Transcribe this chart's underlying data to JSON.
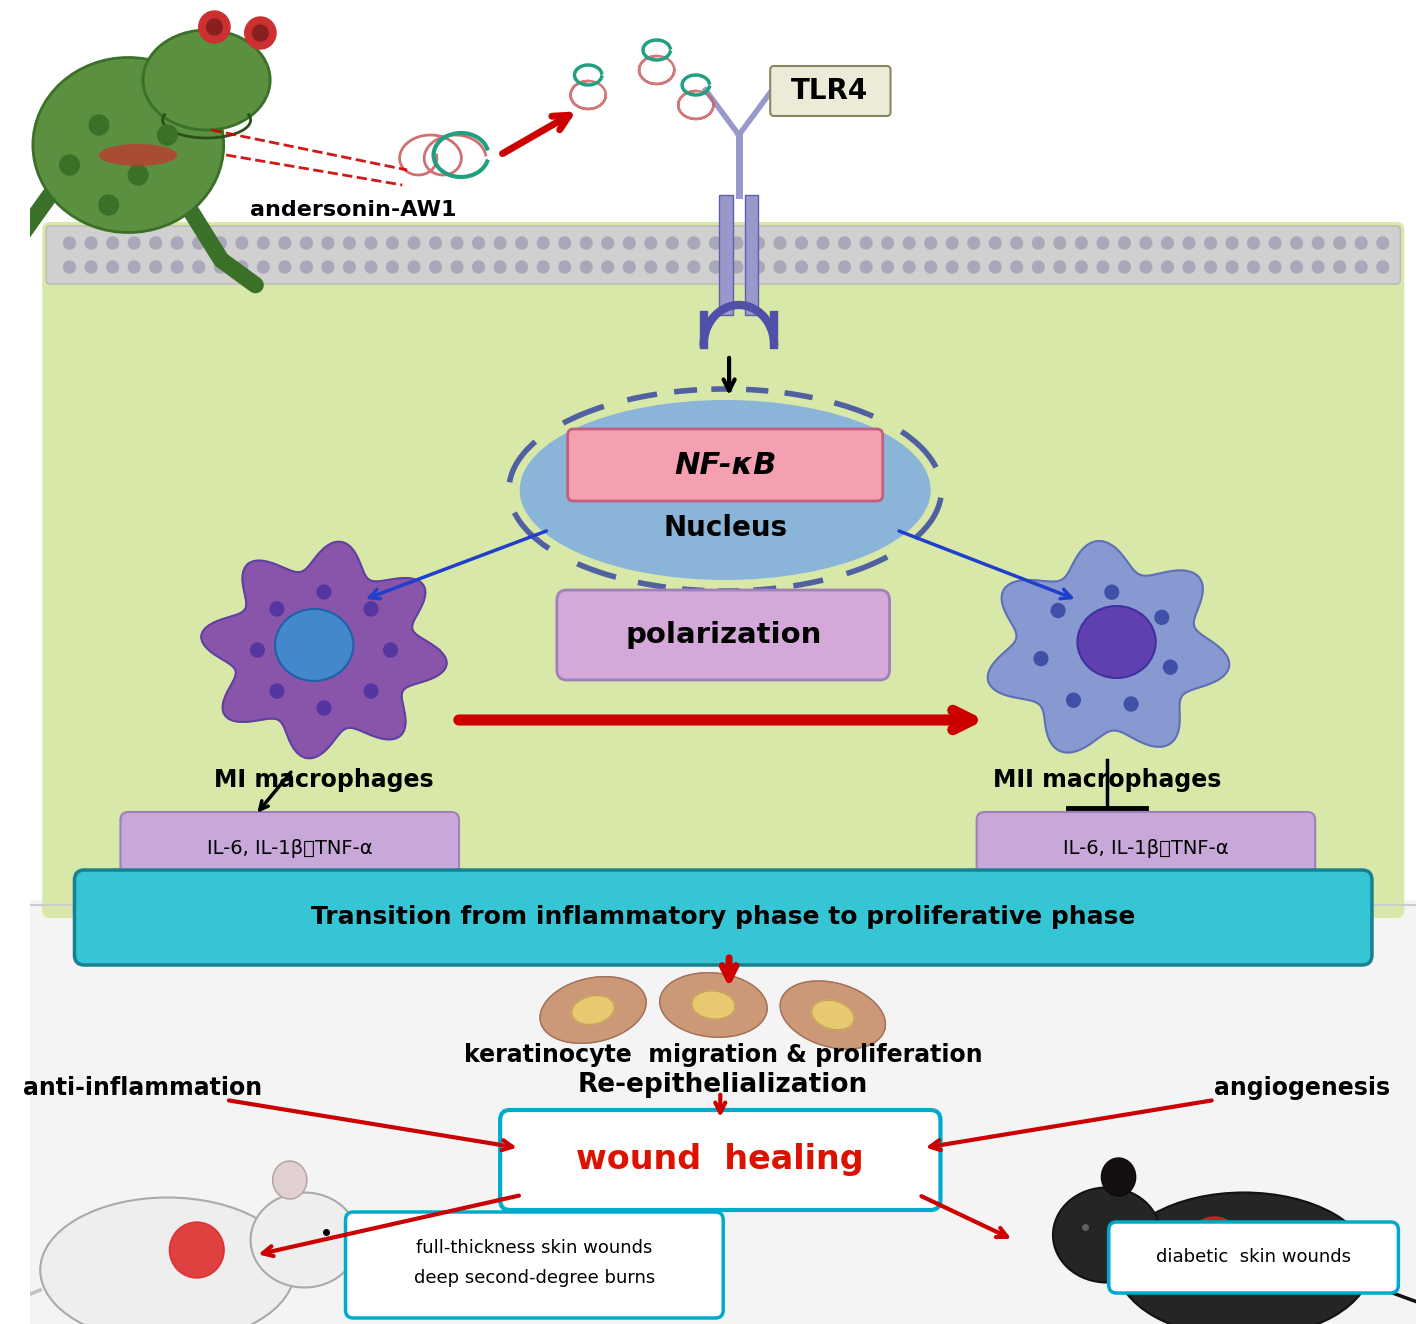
{
  "bg_color_cell": "#d8e8a8",
  "bg_color_bottom": "#f0f0f0",
  "nucleus_color": "#8ab4d8",
  "nfkb_box_color": "#f4a0b0",
  "polarization_box_color": "#d8a8d8",
  "transition_box_color": "#35c5d5",
  "wound_healing_border_color": "#00aacc",
  "cytokine_box_color": "#c8a8d8",
  "tlr4_box_color": "#e8e8d8",
  "red_arrow_color": "#cc0000",
  "blue_arrow_color": "#2040cc",
  "texts": {
    "andersonin": "andersonin-AW1",
    "tlr4": "TLR4",
    "nfkb": "NF-κB",
    "nucleus": "Nucleus",
    "polarization": "polarization",
    "mi_macro": "MI macrophages",
    "mii_macro": "MII macrophages",
    "cytokines": "IL-6, IL-1β， TNF-α",
    "transition": "Transition from inflammatory phase to proliferative phase",
    "keratinocyte": "keratinocyte  migration & proliferation",
    "anti_inflammation": "anti-inflammation",
    "re_epithelialization": "Re-epithelialization",
    "angiogenesis": "angiogenesis",
    "wound_healing": "wound  healing",
    "full_thickness_1": "full-thickness skin wounds",
    "full_thickness_2": "deep second-degree burns",
    "diabetic": "diabetic  skin wounds"
  }
}
